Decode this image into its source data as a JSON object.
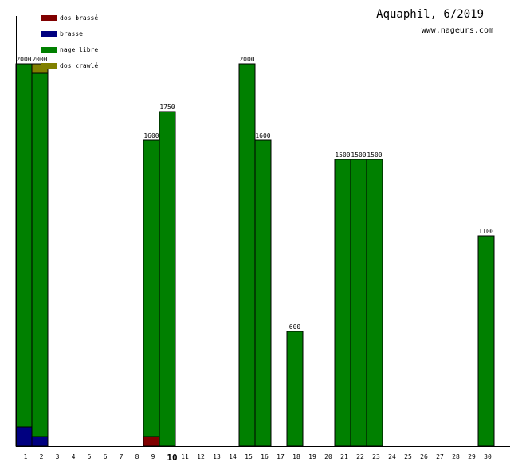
{
  "title": "Aquaphil, 6/2019",
  "source": "www.nageurs.com",
  "colors": {
    "dos_brasse": "#800000",
    "brasse": "#000080",
    "nage_libre": "#008000",
    "dos_crawle": "#808000"
  },
  "chart_data": {
    "type": "bar",
    "stacked": true,
    "title": "Aquaphil, 6/2019",
    "xlabel": "",
    "ylabel": "",
    "ylim": [
      0,
      2000
    ],
    "legend_position": "top-left",
    "highlight_category": "10",
    "categories": [
      "1",
      "2",
      "3",
      "4",
      "5",
      "6",
      "7",
      "8",
      "9",
      "10",
      "11",
      "12",
      "13",
      "14",
      "15",
      "16",
      "17",
      "18",
      "19",
      "20",
      "21",
      "22",
      "23",
      "24",
      "25",
      "26",
      "27",
      "28",
      "29",
      "30"
    ],
    "totals": [
      2000,
      2000,
      0,
      0,
      0,
      0,
      0,
      0,
      1600,
      1750,
      0,
      0,
      0,
      0,
      2000,
      1600,
      0,
      600,
      0,
      0,
      1500,
      1500,
      1500,
      0,
      0,
      0,
      0,
      0,
      0,
      1100
    ],
    "series": [
      {
        "name": "dos brassé",
        "color": "#800000",
        "values": [
          0,
          0,
          0,
          0,
          0,
          0,
          0,
          0,
          50,
          0,
          0,
          0,
          0,
          0,
          0,
          0,
          0,
          0,
          0,
          0,
          0,
          0,
          0,
          0,
          0,
          0,
          0,
          0,
          0,
          0
        ]
      },
      {
        "name": "brasse",
        "color": "#000080",
        "values": [
          100,
          50,
          0,
          0,
          0,
          0,
          0,
          0,
          0,
          0,
          0,
          0,
          0,
          0,
          0,
          0,
          0,
          0,
          0,
          0,
          0,
          0,
          0,
          0,
          0,
          0,
          0,
          0,
          0,
          0
        ]
      },
      {
        "name": "nage libre",
        "color": "#008000",
        "values": [
          1900,
          1900,
          0,
          0,
          0,
          0,
          0,
          0,
          1550,
          1750,
          0,
          0,
          0,
          0,
          2000,
          1600,
          0,
          600,
          0,
          0,
          1500,
          1500,
          1500,
          0,
          0,
          0,
          0,
          0,
          0,
          1100
        ]
      },
      {
        "name": "dos crawlé",
        "color": "#808000",
        "values": [
          0,
          50,
          0,
          0,
          0,
          0,
          0,
          0,
          0,
          0,
          0,
          0,
          0,
          0,
          0,
          0,
          0,
          0,
          0,
          0,
          0,
          0,
          0,
          0,
          0,
          0,
          0,
          0,
          0,
          0
        ]
      }
    ]
  }
}
